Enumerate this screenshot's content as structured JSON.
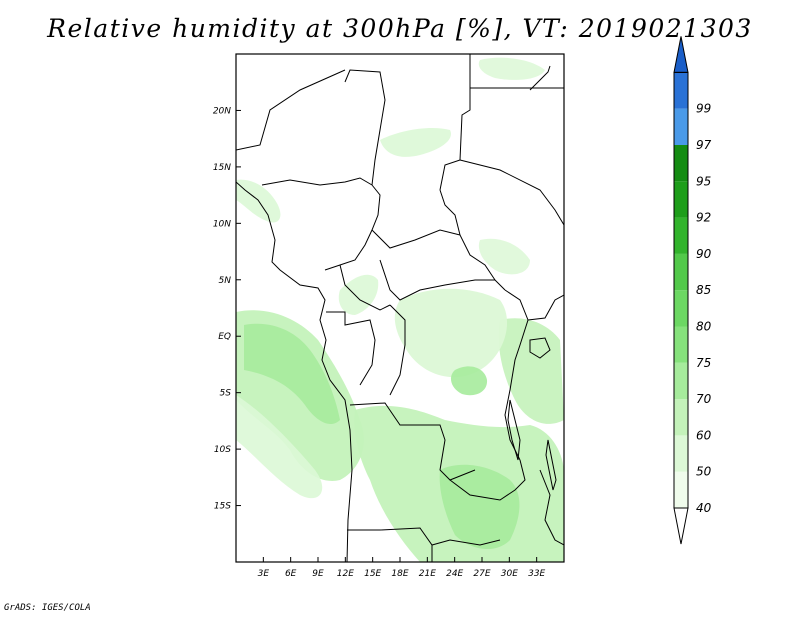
{
  "title": "Relative humidity at 300hPa [%], VT: 2019021303",
  "credit": "GrADS: IGES/COLA",
  "map": {
    "variable": "Relative humidity",
    "level": "300hPa",
    "units": "%",
    "valid_time": "2019021303",
    "lon_range": [
      0,
      36
    ],
    "lat_range": [
      -20,
      25
    ],
    "lon_ticks": [
      {
        "value": 3,
        "label": "3E"
      },
      {
        "value": 6,
        "label": "6E"
      },
      {
        "value": 9,
        "label": "9E"
      },
      {
        "value": 12,
        "label": "12E"
      },
      {
        "value": 15,
        "label": "15E"
      },
      {
        "value": 18,
        "label": "18E"
      },
      {
        "value": 21,
        "label": "21E"
      },
      {
        "value": 24,
        "label": "24E"
      },
      {
        "value": 27,
        "label": "27E"
      },
      {
        "value": 30,
        "label": "30E"
      },
      {
        "value": 33,
        "label": "33E"
      }
    ],
    "lat_ticks": [
      {
        "value": 20,
        "label": "20N"
      },
      {
        "value": 15,
        "label": "15N"
      },
      {
        "value": 10,
        "label": "10N"
      },
      {
        "value": 5,
        "label": "5N"
      },
      {
        "value": 0,
        "label": "EQ"
      },
      {
        "value": -5,
        "label": "5S"
      },
      {
        "value": -10,
        "label": "10S"
      },
      {
        "value": -15,
        "label": "15S"
      }
    ]
  },
  "colorbar": {
    "levels": [
      {
        "label": "40",
        "color": "#f0fcec"
      },
      {
        "label": "50",
        "color": "#dcf8d6"
      },
      {
        "label": "60",
        "color": "#c4f2ba"
      },
      {
        "label": "70",
        "color": "#a6eb9c"
      },
      {
        "label": "75",
        "color": "#86e27c"
      },
      {
        "label": "80",
        "color": "#6cd863"
      },
      {
        "label": "85",
        "color": "#52c94a"
      },
      {
        "label": "90",
        "color": "#32b42c"
      },
      {
        "label": "92",
        "color": "#1e9e1a"
      },
      {
        "label": "95",
        "color": "#148c12"
      },
      {
        "label": "97",
        "color": "#4a9ae8"
      },
      {
        "label": "99",
        "color": "#2a72d6"
      }
    ],
    "top_arrow_color": "#1a5ec8",
    "bottom_arrow_color": "#ffffff"
  },
  "colors": {
    "coast": "#000000",
    "rh_light": "#dcf8d6",
    "rh_mid": "#c4f2ba",
    "rh_high": "#a6eb9c"
  }
}
